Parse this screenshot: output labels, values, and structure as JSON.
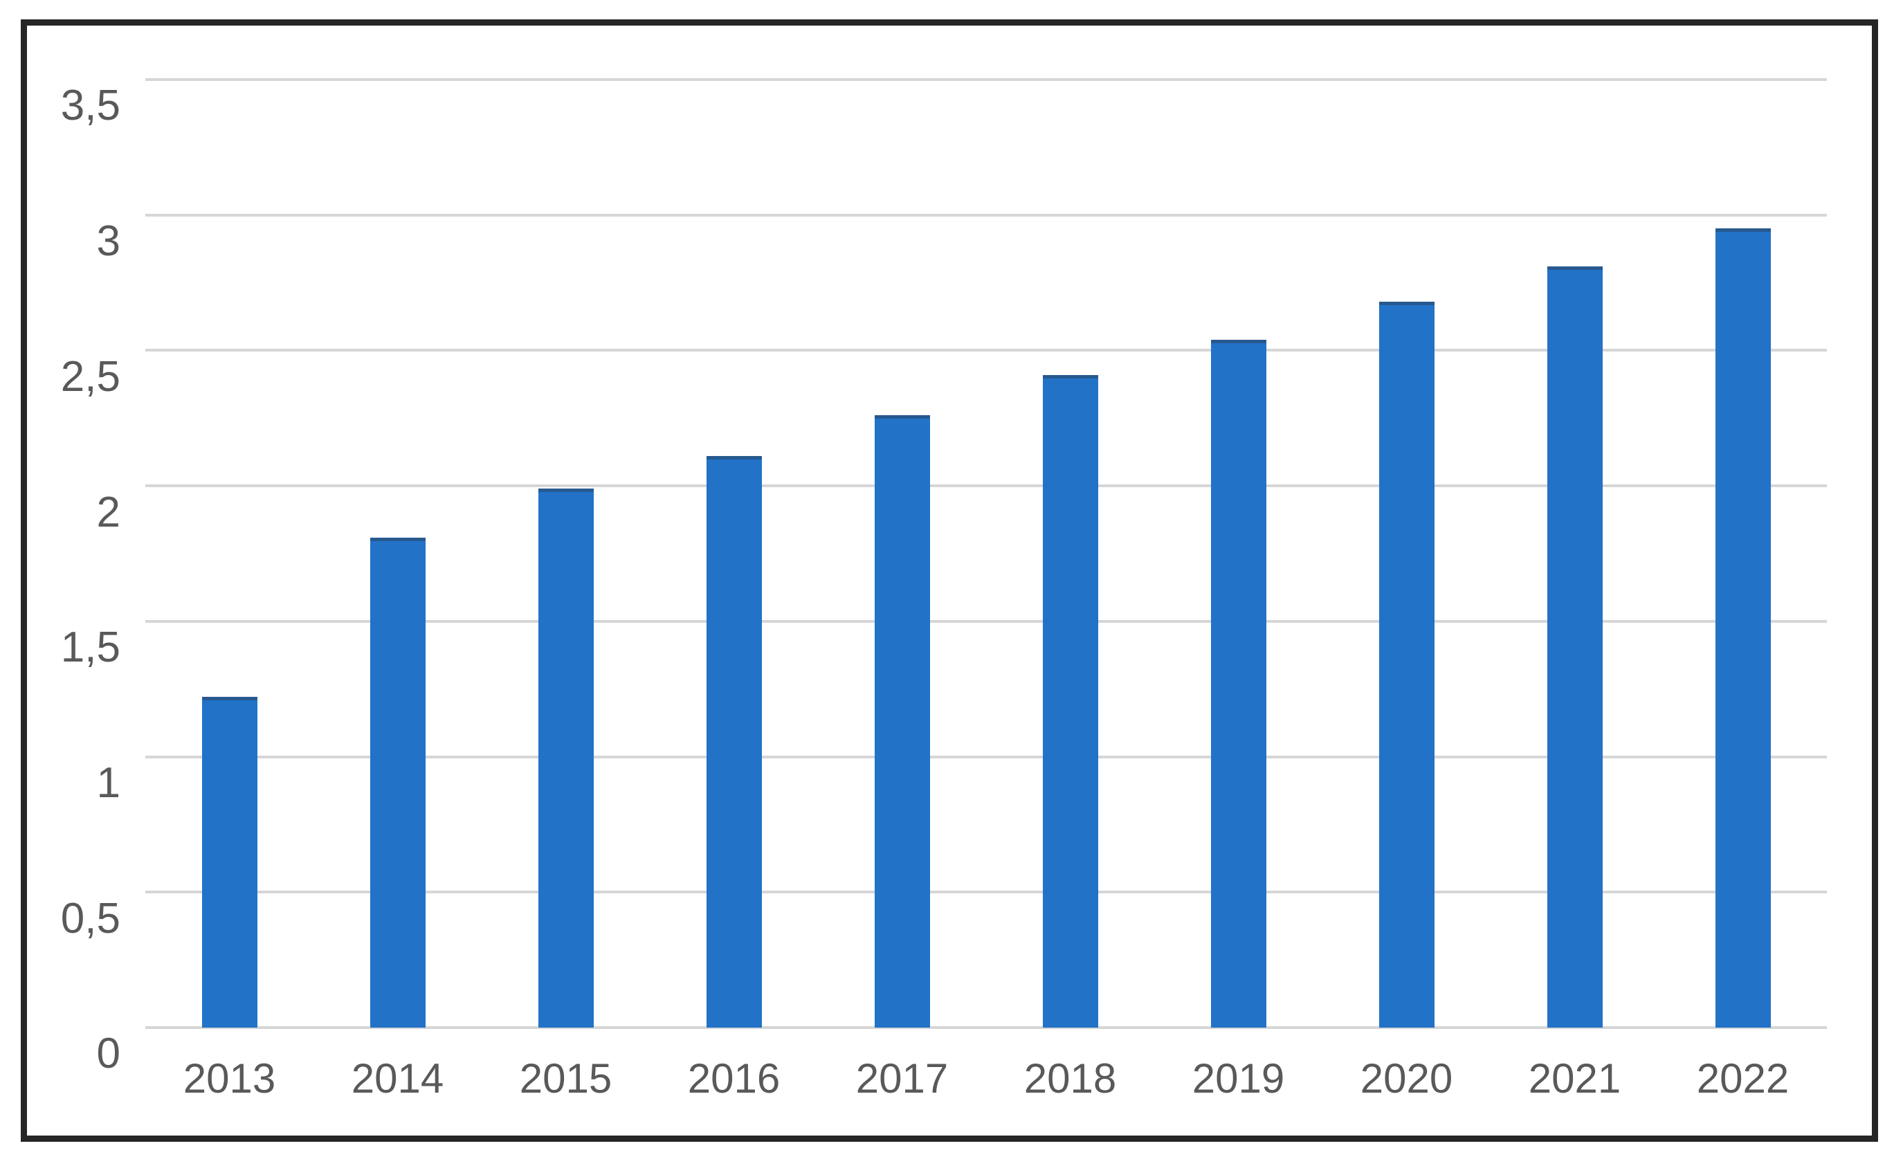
{
  "figure": {
    "background": "#ffffff",
    "frame_border_color": "#262626"
  },
  "chart_data": {
    "type": "bar",
    "title": "",
    "xlabel": "",
    "ylabel": "",
    "categories": [
      "2013",
      "2014",
      "2015",
      "2016",
      "2017",
      "2018",
      "2019",
      "2020",
      "2021",
      "2022"
    ],
    "values": [
      1.22,
      1.81,
      1.99,
      2.11,
      2.26,
      2.41,
      2.54,
      2.68,
      2.81,
      2.95
    ],
    "ylim": [
      0,
      3.5
    ],
    "ytick_step": 0.5,
    "ytick_labels": [
      "0",
      "0,5",
      "1",
      "1,5",
      "2",
      "2,5",
      "3",
      "3,5"
    ],
    "decimal_separator": ",",
    "grid": true,
    "legend_position": "none",
    "bar_color": "#2272c8",
    "bar_top_edge_color": "#27598f",
    "gridline_color": "#d6d6d6",
    "tick_label_color": "#595959"
  }
}
